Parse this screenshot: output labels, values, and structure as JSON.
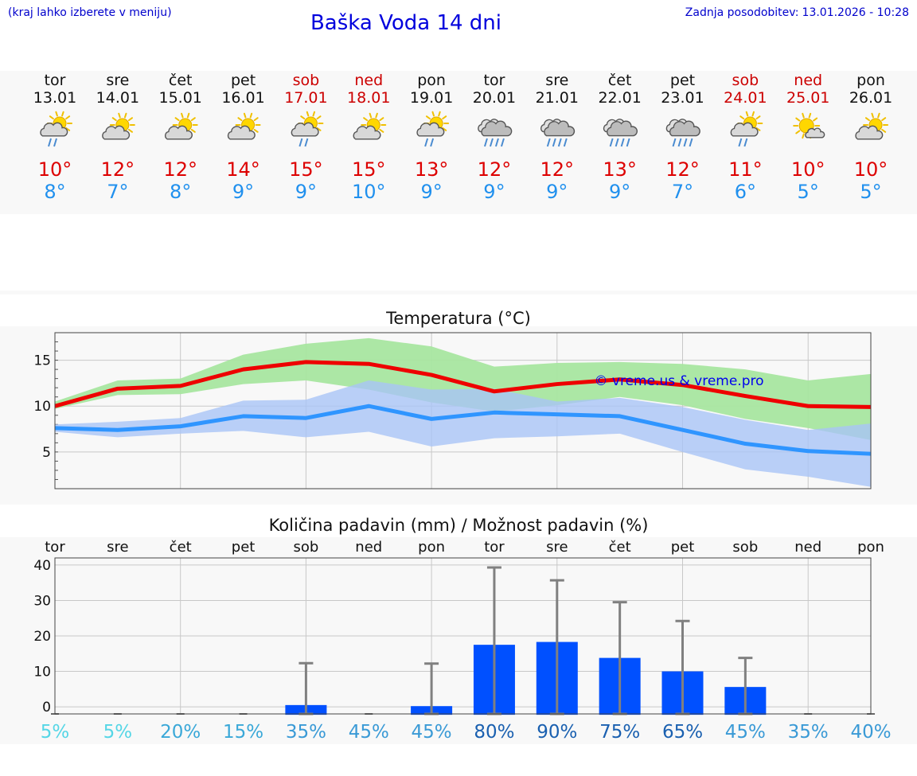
{
  "header": {
    "hint": "(kraj lahko izberete v meniju)",
    "title": "Baška Voda 14 dni",
    "updated_label": "Zadnja posodobitev:",
    "updated_value": "13.01.2026 - 10:28"
  },
  "days": [
    {
      "name": "tor",
      "date": "13.01",
      "weekend": false,
      "icon": "sun-cloud-rain-icon",
      "max": "10°",
      "min": "8°"
    },
    {
      "name": "sre",
      "date": "14.01",
      "weekend": false,
      "icon": "sun-cloud-icon",
      "max": "12°",
      "min": "7°"
    },
    {
      "name": "čet",
      "date": "15.01",
      "weekend": false,
      "icon": "sun-cloud-icon",
      "max": "12°",
      "min": "8°"
    },
    {
      "name": "pet",
      "date": "16.01",
      "weekend": false,
      "icon": "sun-cloud-icon",
      "max": "14°",
      "min": "9°"
    },
    {
      "name": "sob",
      "date": "17.01",
      "weekend": true,
      "icon": "sun-cloud-rain-icon",
      "max": "15°",
      "min": "9°"
    },
    {
      "name": "ned",
      "date": "18.01",
      "weekend": true,
      "icon": "sun-cloud-icon",
      "max": "15°",
      "min": "10°"
    },
    {
      "name": "pon",
      "date": "19.01",
      "weekend": false,
      "icon": "sun-cloud-rain-icon",
      "max": "13°",
      "min": "9°"
    },
    {
      "name": "tor",
      "date": "20.01",
      "weekend": false,
      "icon": "cloud-rain-icon",
      "max": "12°",
      "min": "9°"
    },
    {
      "name": "sre",
      "date": "21.01",
      "weekend": false,
      "icon": "cloud-rain-icon",
      "max": "12°",
      "min": "9°"
    },
    {
      "name": "čet",
      "date": "22.01",
      "weekend": false,
      "icon": "cloud-rain-icon",
      "max": "13°",
      "min": "9°"
    },
    {
      "name": "pet",
      "date": "23.01",
      "weekend": false,
      "icon": "cloud-rain-icon",
      "max": "12°",
      "min": "7°"
    },
    {
      "name": "sob",
      "date": "24.01",
      "weekend": true,
      "icon": "sun-cloud-rain-icon",
      "max": "11°",
      "min": "6°"
    },
    {
      "name": "ned",
      "date": "25.01",
      "weekend": true,
      "icon": "sun-small-cloud-icon",
      "max": "10°",
      "min": "5°"
    },
    {
      "name": "pon",
      "date": "26.01",
      "weekend": false,
      "icon": "sun-cloud-icon",
      "max": "10°",
      "min": "5°"
    }
  ],
  "colors": {
    "max_text": "#dd0000",
    "min_text": "#2090ee",
    "weekend_text": "#cc0000",
    "max_line": "#ee0000",
    "max_band": "#a8e6a0",
    "min_line": "#2f95ff",
    "min_band": "#a9c4f6",
    "bar": "#0050ff",
    "whisker": "#808080"
  },
  "chart_data": [
    {
      "type": "line",
      "title": "Temperatura (°C)",
      "ylim": [
        1,
        18
      ],
      "yticks": [
        5,
        10,
        15
      ],
      "watermark": "© vreme.us & vreme.pro",
      "series": [
        {
          "name": "max",
          "values": [
            10.0,
            11.9,
            12.2,
            14.0,
            14.8,
            14.6,
            13.4,
            11.6,
            12.4,
            12.9,
            12.3,
            11.1,
            10.0,
            9.9
          ],
          "band_low": [
            9.7,
            11.2,
            11.3,
            12.4,
            12.8,
            11.8,
            10.4,
            9.4,
            10.1,
            11.0,
            10.1,
            8.6,
            7.6,
            6.3
          ],
          "band_high": [
            10.5,
            12.8,
            13.0,
            15.6,
            16.8,
            17.4,
            16.5,
            14.3,
            14.7,
            14.8,
            14.6,
            14.0,
            12.8,
            13.5
          ]
        },
        {
          "name": "min",
          "values": [
            7.6,
            7.4,
            7.8,
            8.9,
            8.7,
            10.0,
            8.6,
            9.3,
            9.1,
            8.9,
            7.4,
            5.9,
            5.1,
            4.8
          ],
          "band_low": [
            7.2,
            6.6,
            7.0,
            7.3,
            6.6,
            7.2,
            5.6,
            6.5,
            6.7,
            7.0,
            5.0,
            3.1,
            2.3,
            1.2
          ],
          "band_high": [
            8.0,
            8.3,
            8.7,
            10.6,
            10.7,
            12.8,
            11.8,
            11.9,
            10.5,
            10.9,
            9.9,
            8.5,
            7.4,
            8.1
          ]
        }
      ]
    },
    {
      "type": "bar",
      "title": "Količina padavin (mm) / Možnost padavin (%)",
      "categories": [
        "tor",
        "sre",
        "čet",
        "pet",
        "sob",
        "ned",
        "pon",
        "tor",
        "sre",
        "čet",
        "pet",
        "sob",
        "ned",
        "pon"
      ],
      "ylim": [
        -2,
        42
      ],
      "yticks": [
        0,
        10,
        20,
        30,
        40
      ],
      "values": [
        0,
        0,
        0,
        0,
        0.5,
        0,
        0.2,
        17.5,
        18.3,
        13.8,
        10.0,
        5.6,
        0,
        0
      ],
      "whisker_high": [
        0,
        0,
        0,
        0,
        12.3,
        0,
        12.2,
        39.3,
        35.7,
        29.5,
        24.2,
        13.8,
        0,
        0
      ],
      "probability": [
        "5%",
        "5%",
        "20%",
        "15%",
        "35%",
        "45%",
        "45%",
        "80%",
        "90%",
        "75%",
        "65%",
        "45%",
        "35%",
        "40%"
      ],
      "probability_colors": [
        "#55d6e6",
        "#55d6e6",
        "#3aa8d8",
        "#3aa8d8",
        "#3a9ad6",
        "#3a9ad6",
        "#3a9ad6",
        "#1a60b0",
        "#1a60b0",
        "#1a60b0",
        "#1a60b0",
        "#3a9ad6",
        "#3a9ad6",
        "#3a9ad6"
      ]
    }
  ]
}
